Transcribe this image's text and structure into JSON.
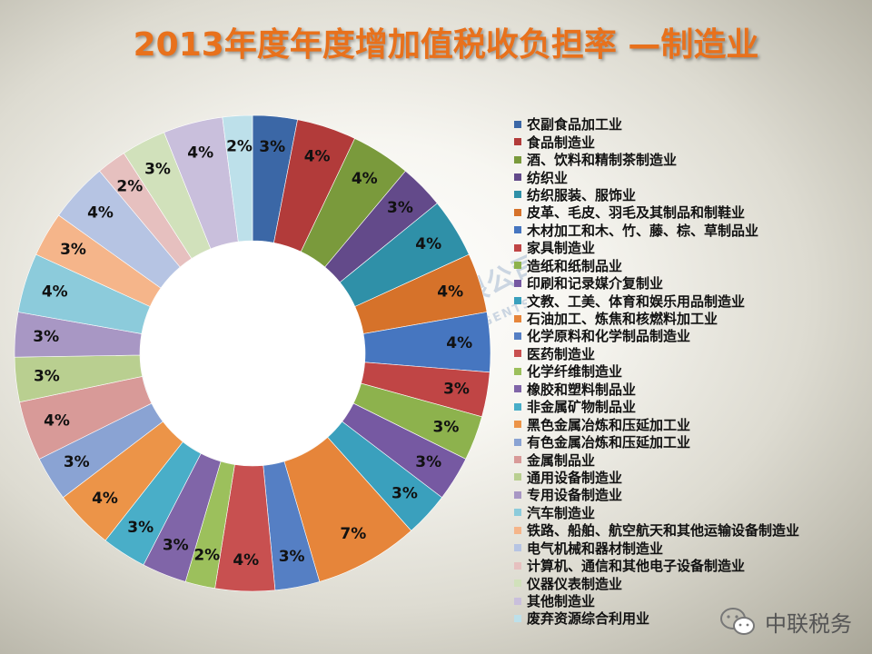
{
  "title": "2013年度年度增加值税收负担率 —制造业",
  "watermark": {
    "cn": "中联税务师事务所有限公司",
    "en": "CHINA UNITED CERTIFIED TAX AGENTS CO., LTD"
  },
  "brand": {
    "label": "中联税务",
    "icon": "wechat-icon"
  },
  "chart_data": {
    "type": "pie",
    "variant": "donut",
    "title": "2013年度年度增加值税收负担率 —制造业",
    "legend_position": "right",
    "start_angle_degrees": 0,
    "direction": "clockwise",
    "categories": [
      "农副食品加工业",
      "食品制造业",
      "酒、饮料和精制茶制造业",
      "纺织业",
      "纺织服装、服饰业",
      "皮革、毛皮、羽毛及其制品和制鞋业",
      "木材加工和木、竹、藤、棕、草制品业",
      "家具制造业",
      "造纸和纸制品业",
      "印刷和记录媒介复制业",
      "文教、工美、体育和娱乐用品制造业",
      "石油加工、炼焦和核燃料加工业",
      "化学原料和化学制品制造业",
      "医药制造业",
      "化学纤维制造业",
      "橡胶和塑料制品业",
      "非金属矿物制品业",
      "黑色金属冶炼和压延加工业",
      "有色金属冶炼和压延加工业",
      "金属制品业",
      "通用设备制造业",
      "专用设备制造业",
      "汽车制造业",
      "铁路、船舶、航空航天和其他运输设备制造业",
      "电气机械和器材制造业",
      "计算机、通信和其他电子设备制造业",
      "仪器仪表制造业",
      "其他制造业",
      "废弃资源综合利用业"
    ],
    "values": [
      3,
      4,
      4,
      3,
      4,
      4,
      4,
      3,
      3,
      3,
      3,
      7,
      3,
      4,
      2,
      3,
      3,
      4,
      3,
      4,
      3,
      3,
      4,
      3,
      4,
      2,
      3,
      4,
      2
    ],
    "labels": [
      "3%",
      "4%",
      "4%",
      "3%",
      "4%",
      "4%",
      "4%",
      "3%",
      "3%",
      "3%",
      "3%",
      "7%",
      "3%",
      "4%",
      "2%",
      "3%",
      "3%",
      "4%",
      "3%",
      "4%",
      "3%",
      "3%",
      "4%",
      "3%",
      "4%",
      "2%",
      "3%",
      "4%",
      "2%"
    ],
    "colors": [
      "#3b67a6",
      "#b23b3a",
      "#7a9a3c",
      "#634a8a",
      "#2f90a8",
      "#d6722a",
      "#4676c0",
      "#c04545",
      "#8db24d",
      "#7659a2",
      "#3aa0bd",
      "#e6853a",
      "#557fc4",
      "#c85050",
      "#9cc05c",
      "#8065a8",
      "#49aec8",
      "#ec9448",
      "#8aa3d3",
      "#d89a98",
      "#b9cf90",
      "#a897c4",
      "#8ccbdb",
      "#f5b58a",
      "#b6c4e3",
      "#e6c0bf",
      "#d1e1bb",
      "#c9bfdc",
      "#bde0ea"
    ]
  }
}
